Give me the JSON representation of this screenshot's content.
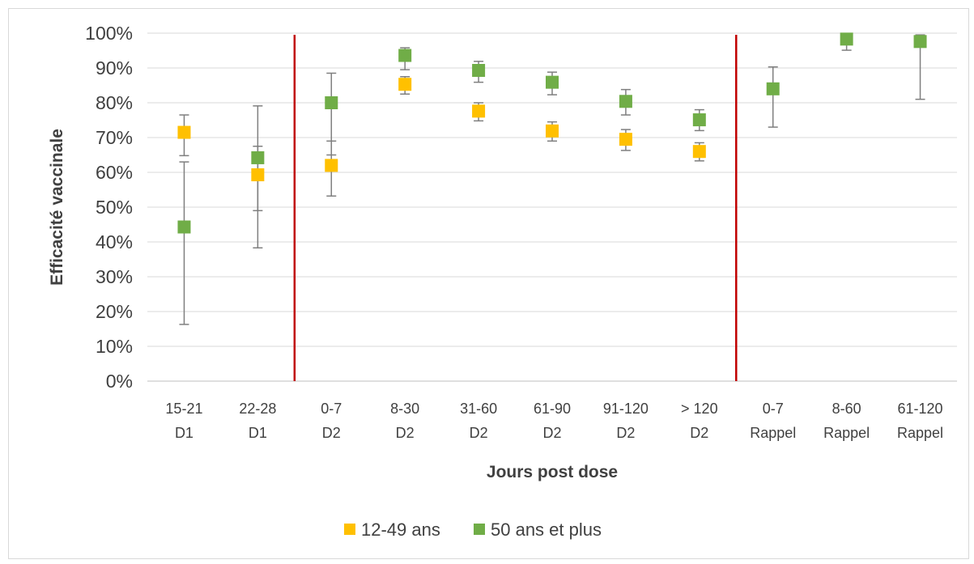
{
  "chart_data": {
    "type": "scatter",
    "title": "",
    "xlabel": "Jours post dose",
    "ylabel": "Efficacité vaccinale",
    "ylim": [
      0,
      100
    ],
    "y_ticks": [
      "0%",
      "10%",
      "20%",
      "30%",
      "40%",
      "50%",
      "60%",
      "70%",
      "80%",
      "90%",
      "100%"
    ],
    "grid": true,
    "legend_position": "bottom",
    "categories": [
      {
        "line1": "15-21",
        "line2": "D1"
      },
      {
        "line1": "22-28",
        "line2": "D1"
      },
      {
        "line1": "0-7",
        "line2": "D2"
      },
      {
        "line1": "8-30",
        "line2": "D2"
      },
      {
        "line1": "31-60",
        "line2": "D2"
      },
      {
        "line1": "61-90",
        "line2": "D2"
      },
      {
        "line1": "91-120",
        "line2": "D2"
      },
      {
        "line1": "> 120",
        "line2": "D2"
      },
      {
        "line1": "0-7",
        "line2": "Rappel"
      },
      {
        "line1": "8-60",
        "line2": "Rappel"
      },
      {
        "line1": "61-120",
        "line2": "Rappel"
      }
    ],
    "separators_after_category_index": [
      1,
      7
    ],
    "separator_color": "#c00000",
    "series": [
      {
        "name": "12-49 ans",
        "color": "#ffc000",
        "values": [
          71.5,
          59.3,
          62.0,
          85.3,
          77.6,
          71.9,
          69.5,
          66.0,
          null,
          null,
          null
        ],
        "ci_low": [
          64.8,
          49.0,
          53.2,
          82.5,
          74.8,
          69.0,
          66.3,
          63.3,
          null,
          null,
          null
        ],
        "ci_high": [
          76.5,
          67.5,
          69.0,
          87.5,
          80.0,
          74.5,
          72.3,
          68.5,
          null,
          null,
          null
        ]
      },
      {
        "name": "50 ans et plus",
        "color": "#70ad47",
        "values": [
          44.3,
          64.2,
          80.0,
          93.6,
          89.3,
          85.9,
          80.4,
          75.1,
          84.0,
          98.3,
          97.6
        ],
        "ci_low": [
          16.3,
          38.3,
          65.0,
          89.5,
          85.9,
          82.3,
          76.5,
          72.0,
          73.0,
          95.1,
          81.0
        ],
        "ci_high": [
          63.0,
          79.1,
          88.5,
          95.8,
          91.9,
          88.8,
          83.8,
          78.0,
          90.3,
          99.0,
          99.5
        ]
      }
    ]
  }
}
